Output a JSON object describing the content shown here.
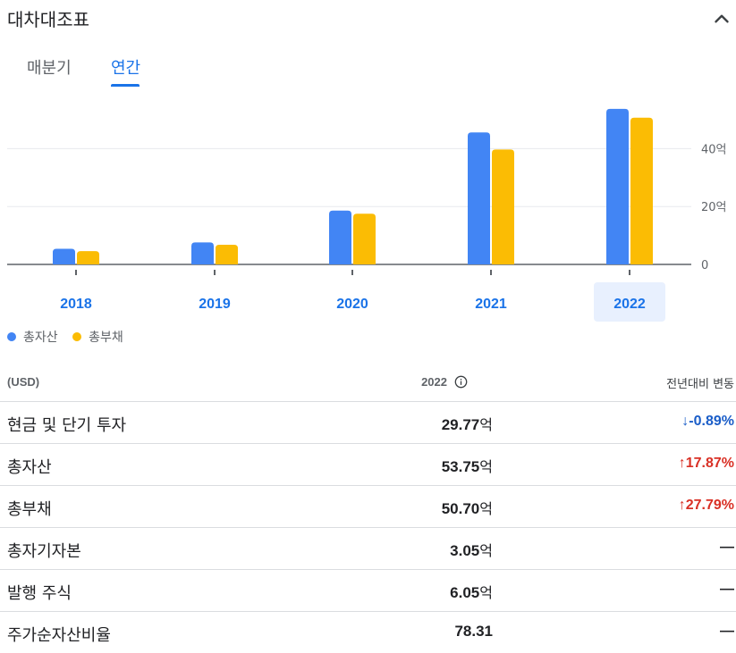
{
  "section": {
    "title": "대차대조표"
  },
  "tabs": [
    {
      "label": "매분기"
    },
    {
      "label": "연간"
    }
  ],
  "active_tab": "연간",
  "colors": {
    "accent": "#1a73e8",
    "series1": "#4285f4",
    "series2": "#fbbc04",
    "up": "#d93025",
    "down": "#1a5dc8",
    "selected_year_bg": "#e8f0fe"
  },
  "chart_data": {
    "type": "bar",
    "categories": [
      "2018",
      "2019",
      "2020",
      "2021",
      "2022"
    ],
    "selected_category": "2022",
    "series": [
      {
        "name": "총자산",
        "values": [
          5.4,
          7.6,
          18.6,
          45.6,
          53.75
        ]
      },
      {
        "name": "총부채",
        "values": [
          4.6,
          6.8,
          17.5,
          39.7,
          50.7
        ]
      }
    ],
    "yticks": [
      "0",
      "20억",
      "40억"
    ],
    "ytick_values": [
      0,
      20,
      40
    ],
    "ylim": [
      0,
      58
    ],
    "legend_position": "bottom-left",
    "grid": true
  },
  "table": {
    "header": {
      "col1": "(USD)",
      "col2": "2022",
      "col3": "전년대비 변동"
    },
    "rows": [
      {
        "label": "현금 및 단기 투자",
        "value": "29.77",
        "unit": "억",
        "change": "-0.89%",
        "arrow": "↓",
        "dir": "down"
      },
      {
        "label": "총자산",
        "value": "53.75",
        "unit": "억",
        "change": "17.87%",
        "arrow": "↑",
        "dir": "up"
      },
      {
        "label": "총부채",
        "value": "50.70",
        "unit": "억",
        "change": "27.79%",
        "arrow": "↑",
        "dir": "up"
      },
      {
        "label": "총자기자본",
        "value": "3.05",
        "unit": "억",
        "change": "—",
        "arrow": "",
        "dir": "none"
      },
      {
        "label": "발행 주식",
        "value": "6.05",
        "unit": "억",
        "change": "—",
        "arrow": "",
        "dir": "none"
      },
      {
        "label": "주가순자산비율",
        "value": "78.31",
        "unit": "",
        "change": "—",
        "arrow": "",
        "dir": "none"
      }
    ]
  }
}
